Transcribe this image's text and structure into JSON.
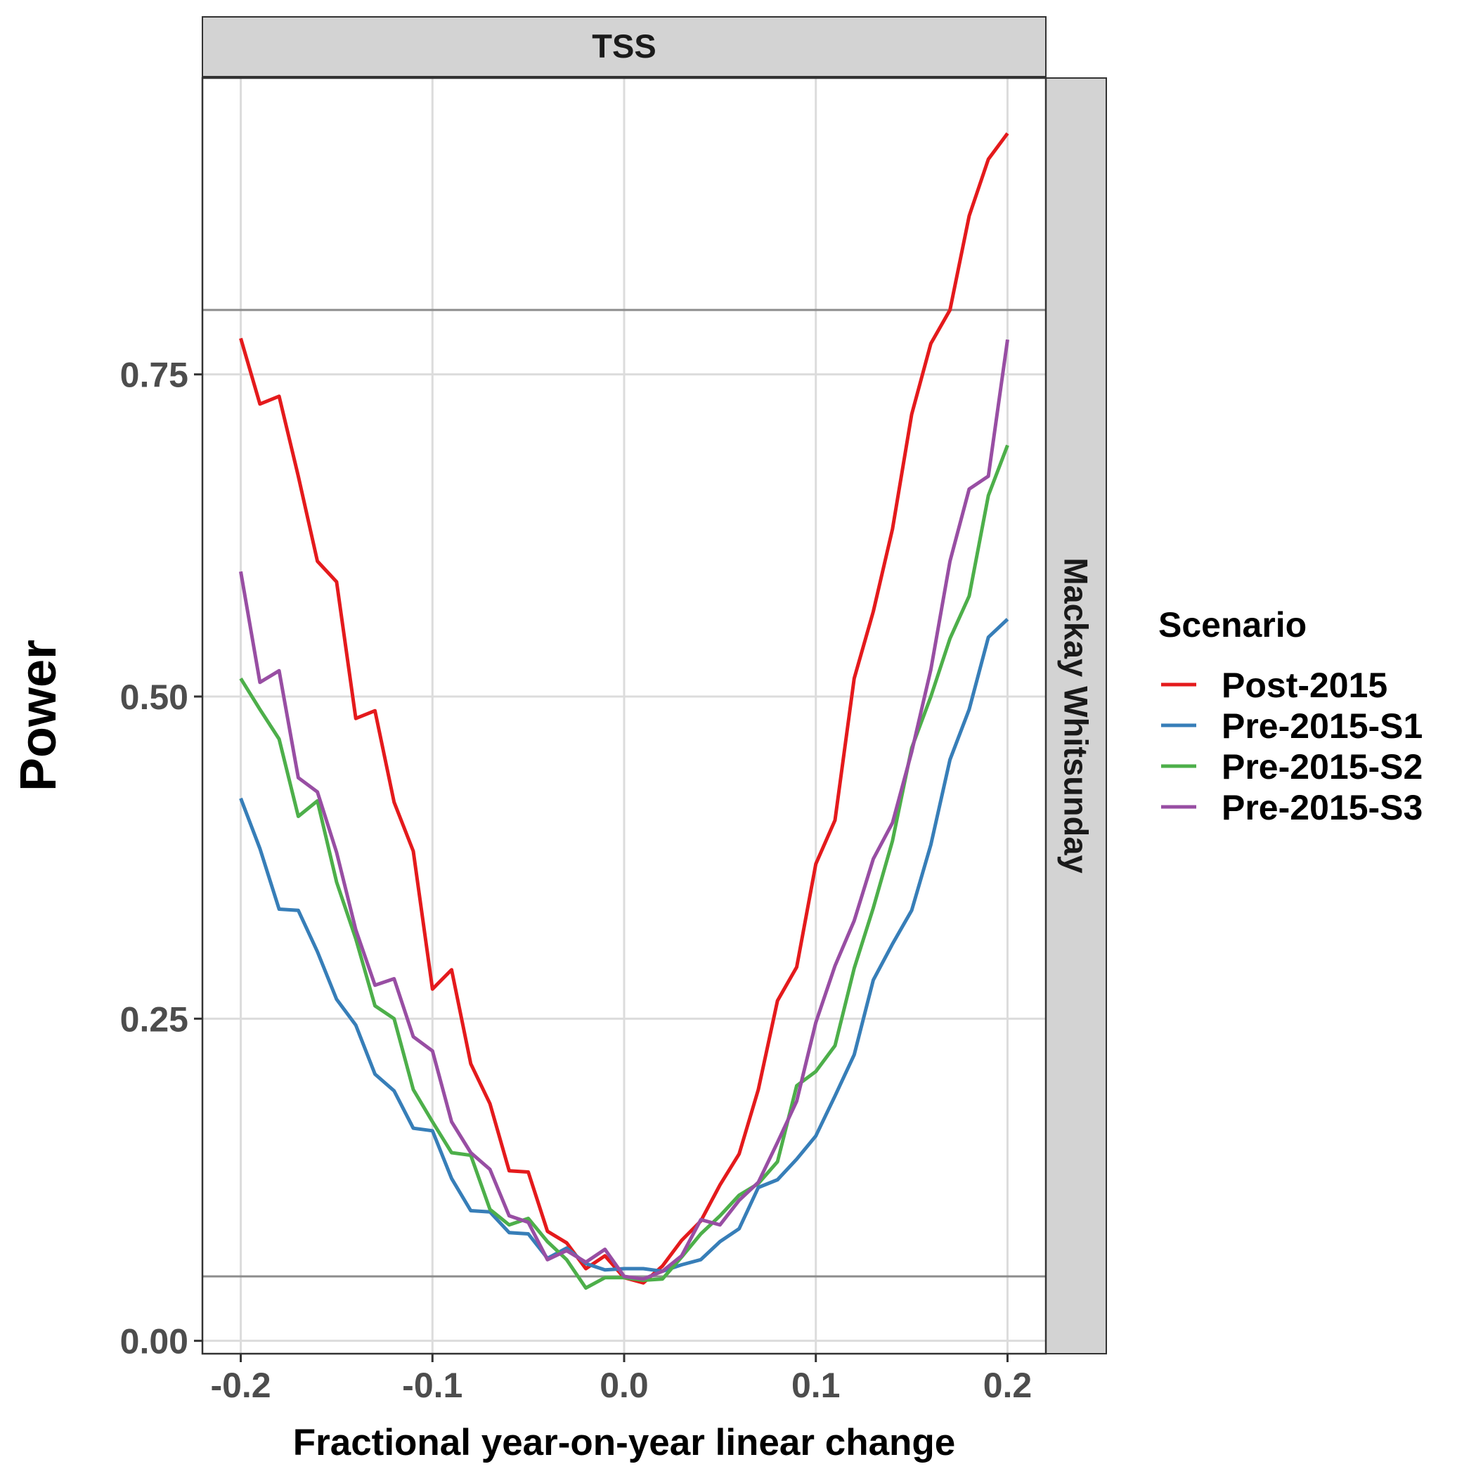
{
  "chart_data": {
    "type": "line",
    "facet_top": "TSS",
    "facet_right": "Mackay Whitsunday",
    "xlabel": "Fractional year-on-year linear change",
    "ylabel": "Power",
    "xlim": [
      -0.22,
      0.22
    ],
    "ylim": [
      -0.01,
      0.98
    ],
    "x_ticks": [
      -0.2,
      -0.1,
      0.0,
      0.1,
      0.2
    ],
    "x_tick_labels": [
      "-0.2",
      "-0.1",
      "0.0",
      "0.1",
      "0.2"
    ],
    "y_ticks": [
      0.0,
      0.25,
      0.5,
      0.75
    ],
    "y_tick_labels": [
      "0.00",
      "0.25",
      "0.50",
      "0.75"
    ],
    "reference_lines": [
      0.05,
      0.8
    ],
    "grid": true,
    "legend": {
      "title": "Scenario",
      "position": "right"
    },
    "x": [
      -0.2,
      -0.19,
      -0.18,
      -0.17,
      -0.16,
      -0.15,
      -0.14,
      -0.13,
      -0.12,
      -0.11,
      -0.1,
      -0.09,
      -0.08,
      -0.07,
      -0.06,
      -0.05,
      -0.04,
      -0.03,
      -0.02,
      -0.01,
      0.0,
      0.01,
      0.02,
      0.03,
      0.04,
      0.05,
      0.06,
      0.07,
      0.08,
      0.09,
      0.1,
      0.11,
      0.12,
      0.13,
      0.14,
      0.15,
      0.16,
      0.17,
      0.18,
      0.19,
      0.2
    ],
    "series": [
      {
        "name": "Post-2015",
        "color": "#E41A1C",
        "values": [
          0.778,
          0.727,
          0.733,
          0.671,
          0.605,
          0.589,
          0.483,
          0.489,
          0.418,
          0.38,
          0.273,
          0.288,
          0.215,
          0.184,
          0.132,
          0.131,
          0.085,
          0.076,
          0.056,
          0.066,
          0.049,
          0.045,
          0.058,
          0.078,
          0.093,
          0.121,
          0.145,
          0.195,
          0.264,
          0.29,
          0.37,
          0.404,
          0.514,
          0.566,
          0.63,
          0.719,
          0.774,
          0.8,
          0.873,
          0.917,
          0.937
        ]
      },
      {
        "name": "Pre-2015-S1",
        "color": "#377EB8",
        "values": [
          0.421,
          0.382,
          0.335,
          0.334,
          0.302,
          0.265,
          0.245,
          0.207,
          0.194,
          0.165,
          0.163,
          0.126,
          0.101,
          0.1,
          0.084,
          0.083,
          0.064,
          0.072,
          0.06,
          0.055,
          0.056,
          0.056,
          0.054,
          0.059,
          0.063,
          0.077,
          0.087,
          0.119,
          0.125,
          0.141,
          0.159,
          0.19,
          0.222,
          0.28,
          0.308,
          0.334,
          0.385,
          0.451,
          0.49,
          0.546,
          0.56
        ]
      },
      {
        "name": "Pre-2015-S2",
        "color": "#4DAF4A",
        "values": [
          0.514,
          0.49,
          0.467,
          0.407,
          0.419,
          0.356,
          0.312,
          0.26,
          0.25,
          0.195,
          0.17,
          0.146,
          0.144,
          0.102,
          0.09,
          0.095,
          0.077,
          0.063,
          0.041,
          0.049,
          0.049,
          0.047,
          0.048,
          0.065,
          0.083,
          0.097,
          0.113,
          0.122,
          0.139,
          0.198,
          0.209,
          0.229,
          0.289,
          0.336,
          0.388,
          0.46,
          0.5,
          0.545,
          0.578,
          0.656,
          0.695
        ]
      },
      {
        "name": "Pre-2015-S3",
        "color": "#984EA3",
        "values": [
          0.597,
          0.511,
          0.52,
          0.437,
          0.426,
          0.379,
          0.319,
          0.276,
          0.281,
          0.236,
          0.225,
          0.17,
          0.146,
          0.133,
          0.097,
          0.092,
          0.063,
          0.07,
          0.061,
          0.071,
          0.05,
          0.048,
          0.054,
          0.066,
          0.094,
          0.09,
          0.109,
          0.123,
          0.154,
          0.186,
          0.247,
          0.291,
          0.326,
          0.374,
          0.402,
          0.457,
          0.521,
          0.605,
          0.661,
          0.671,
          0.777
        ]
      }
    ]
  }
}
